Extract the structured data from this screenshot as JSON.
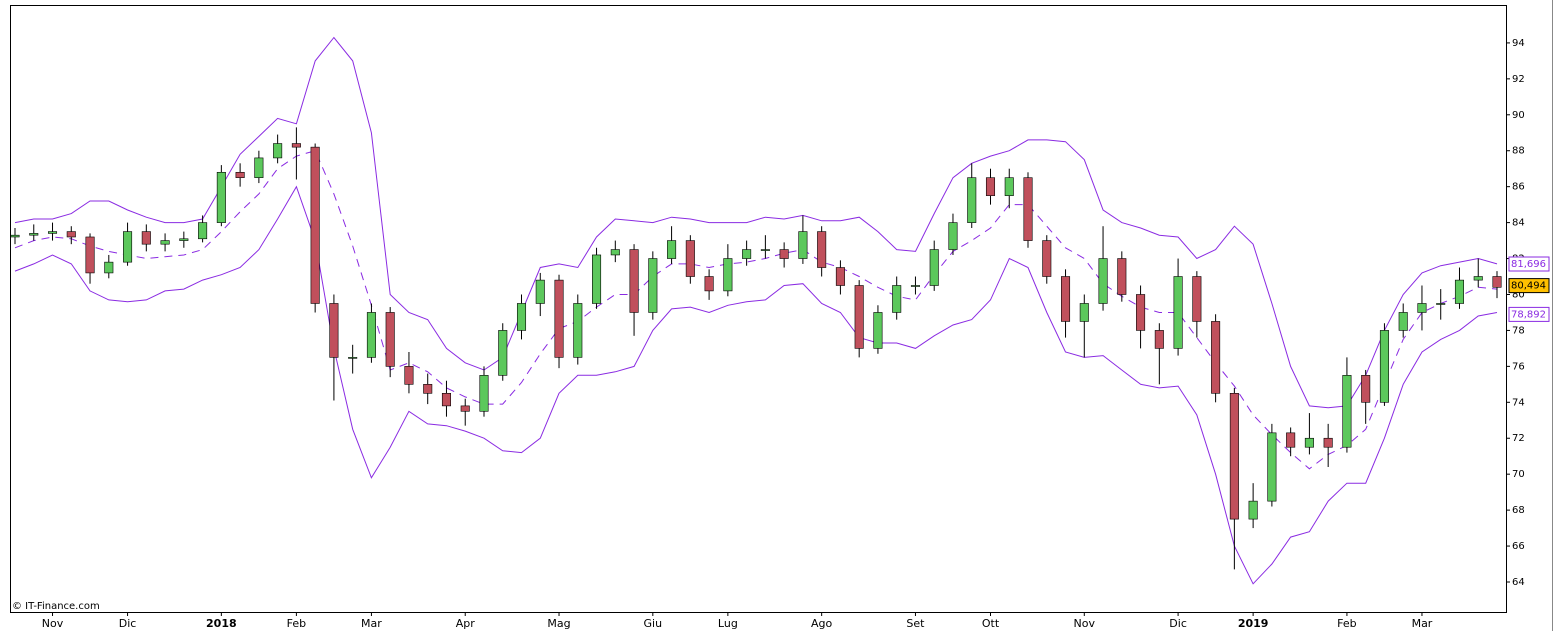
{
  "chart_data": {
    "type": "candlestick",
    "watermark": "© IT-Finance.com",
    "categories": [
      null,
      null,
      "Nov",
      null,
      null,
      null,
      "Dic",
      null,
      null,
      null,
      null,
      "2018",
      null,
      null,
      null,
      "Feb",
      null,
      null,
      null,
      "Mar",
      null,
      null,
      null,
      null,
      "Apr",
      null,
      null,
      null,
      null,
      "Mag",
      null,
      null,
      null,
      null,
      "Giu",
      null,
      null,
      null,
      "Lug",
      null,
      null,
      null,
      null,
      "Ago",
      null,
      null,
      null,
      null,
      "Set",
      null,
      null,
      null,
      "Ott",
      null,
      null,
      null,
      null,
      "Nov",
      null,
      null,
      null,
      null,
      "Dic",
      null,
      null,
      null,
      "2019",
      null,
      null,
      null,
      null,
      "Feb",
      null,
      null,
      null,
      "Mar",
      null,
      null,
      null,
      null
    ],
    "open": [
      83.2,
      83.3,
      83.4,
      83.5,
      83.2,
      81.2,
      81.8,
      83.5,
      82.8,
      83.0,
      83.1,
      84.0,
      86.8,
      86.5,
      87.6,
      88.4,
      88.2,
      79.5,
      76.5,
      76.5,
      79.0,
      76.0,
      75.0,
      74.5,
      73.8,
      73.5,
      75.5,
      78.0,
      79.5,
      80.8,
      76.5,
      79.5,
      82.2,
      82.5,
      79.0,
      82.0,
      83.0,
      81.0,
      80.2,
      82.0,
      82.5,
      82.5,
      82.0,
      83.5,
      81.5,
      80.5,
      77.0,
      79.0,
      80.5,
      80.5,
      82.5,
      84.0,
      86.5,
      85.5,
      86.5,
      83.0,
      81.0,
      78.5,
      79.5,
      82.0,
      80.0,
      78.0,
      77.0,
      81.0,
      78.5,
      74.5,
      67.5,
      68.5,
      72.3,
      71.5,
      72.0,
      71.5,
      75.5,
      74.0,
      78.0,
      79.0,
      79.5,
      79.5,
      80.8,
      81.0
    ],
    "high": [
      83.7,
      83.9,
      84.0,
      83.8,
      83.4,
      82.2,
      84.0,
      83.9,
      83.4,
      83.5,
      84.4,
      87.2,
      87.3,
      88.0,
      88.9,
      89.3,
      88.4,
      80.0,
      77.2,
      79.5,
      79.3,
      76.8,
      75.6,
      75.2,
      74.2,
      76.0,
      78.4,
      80.0,
      81.2,
      81.1,
      80.0,
      82.6,
      83.0,
      82.8,
      82.4,
      83.8,
      83.3,
      81.4,
      82.8,
      83.0,
      83.3,
      82.9,
      84.4,
      83.8,
      81.9,
      80.8,
      79.4,
      81.0,
      81.0,
      83.0,
      84.5,
      87.3,
      87.0,
      87.0,
      86.8,
      83.3,
      81.4,
      80.0,
      83.8,
      82.4,
      80.5,
      78.4,
      82.0,
      81.3,
      78.9,
      74.8,
      69.5,
      72.8,
      72.6,
      73.4,
      72.8,
      76.5,
      75.8,
      78.4,
      79.5,
      80.5,
      80.3,
      81.5,
      82.0,
      81.3
    ],
    "low": [
      82.8,
      83.0,
      83.0,
      82.8,
      80.6,
      80.9,
      81.6,
      82.4,
      82.4,
      82.6,
      82.9,
      83.8,
      86.0,
      86.2,
      87.3,
      86.4,
      79.0,
      74.1,
      75.6,
      76.2,
      75.4,
      74.5,
      73.9,
      73.2,
      72.7,
      73.2,
      75.2,
      77.5,
      78.8,
      75.9,
      76.1,
      79.2,
      81.8,
      77.7,
      78.6,
      81.7,
      80.6,
      79.7,
      79.9,
      81.6,
      82.0,
      81.5,
      81.7,
      81.0,
      80.0,
      76.5,
      76.7,
      78.6,
      80.0,
      80.2,
      82.2,
      83.7,
      85.0,
      84.8,
      82.6,
      80.6,
      77.6,
      76.5,
      79.1,
      79.6,
      77.0,
      75.0,
      76.6,
      77.6,
      74.0,
      64.7,
      67.0,
      68.2,
      71.0,
      71.1,
      70.4,
      71.2,
      72.8,
      73.8,
      77.6,
      78.0,
      78.6,
      79.2,
      80.4,
      79.8
    ],
    "close": [
      83.3,
      83.4,
      83.5,
      83.2,
      81.2,
      81.8,
      83.5,
      82.8,
      83.0,
      83.1,
      84.0,
      86.8,
      86.5,
      87.6,
      88.4,
      88.2,
      79.5,
      76.5,
      76.5,
      79.0,
      76.0,
      75.0,
      74.5,
      73.8,
      73.5,
      75.5,
      78.0,
      79.5,
      80.8,
      76.5,
      79.5,
      82.2,
      82.5,
      79.0,
      82.0,
      83.0,
      81.0,
      80.2,
      82.0,
      82.5,
      82.5,
      82.0,
      83.5,
      81.5,
      80.5,
      77.0,
      79.0,
      80.5,
      80.5,
      82.5,
      84.0,
      86.5,
      85.5,
      86.5,
      83.0,
      81.0,
      78.5,
      79.5,
      82.0,
      80.0,
      78.0,
      77.0,
      81.0,
      78.5,
      74.5,
      67.5,
      68.5,
      72.3,
      71.5,
      72.0,
      71.5,
      75.5,
      74.0,
      78.0,
      79.0,
      79.5,
      79.5,
      80.8,
      81.0,
      80.4
    ],
    "up_color": "#5cc85c",
    "down_color": "#c0505c",
    "bands": [
      {
        "color": "#8a2be2",
        "dashed": false,
        "values": [
          84.0,
          84.2,
          84.2,
          84.5,
          85.2,
          85.2,
          84.7,
          84.3,
          84.0,
          84.0,
          84.2,
          86.0,
          87.8,
          88.8,
          89.8,
          89.5,
          93.0,
          94.3,
          93.0,
          89.0,
          80.0,
          79.0,
          78.6,
          77.0,
          76.2,
          75.8,
          76.5,
          79.0,
          81.5,
          81.7,
          81.5,
          83.2,
          84.2,
          84.1,
          84.0,
          84.3,
          84.2,
          84.0,
          84.0,
          84.0,
          84.3,
          84.2,
          84.4,
          84.1,
          84.1,
          84.3,
          83.5,
          82.5,
          82.4,
          84.5,
          86.5,
          87.3,
          87.7,
          88.0,
          88.6,
          88.6,
          88.5,
          87.5,
          84.7,
          84.0,
          83.7,
          83.3,
          83.2,
          82.0,
          82.5,
          83.8,
          82.8,
          79.5,
          76.0,
          73.8,
          73.7,
          73.8,
          75.5,
          78.0,
          80.0,
          81.2,
          81.6,
          81.8,
          82.0,
          81.7
        ]
      },
      {
        "color": "#8a2be2",
        "dashed": true,
        "values": [
          82.6,
          83.0,
          83.2,
          83.1,
          82.7,
          82.4,
          82.2,
          82.0,
          82.1,
          82.2,
          82.5,
          83.5,
          84.6,
          85.6,
          87.0,
          87.7,
          88.0,
          85.6,
          82.7,
          79.4,
          75.8,
          76.2,
          75.7,
          74.8,
          74.3,
          73.9,
          73.9,
          75.1,
          76.7,
          78.1,
          78.5,
          79.3,
          80.0,
          80.0,
          81.0,
          81.7,
          81.7,
          81.5,
          81.7,
          81.8,
          82.0,
          82.3,
          82.5,
          81.8,
          81.5,
          81.0,
          80.4,
          79.9,
          79.7,
          81.1,
          82.4,
          83.0,
          83.7,
          85.0,
          85.0,
          83.8,
          82.6,
          82.0,
          80.6,
          79.9,
          79.3,
          79.0,
          79.0,
          77.6,
          76.2,
          74.9,
          73.3,
          72.2,
          71.2,
          70.3,
          71.1,
          71.6,
          72.5,
          75.0,
          77.5,
          79.0,
          79.5,
          79.9,
          80.4,
          80.3
        ]
      },
      {
        "color": "#8a2be2",
        "dashed": false,
        "values": [
          81.3,
          81.7,
          82.2,
          81.7,
          80.2,
          79.7,
          79.6,
          79.7,
          80.2,
          80.3,
          80.8,
          81.1,
          81.5,
          82.5,
          84.2,
          86.0,
          83.0,
          77.0,
          72.5,
          69.8,
          71.5,
          73.5,
          72.8,
          72.7,
          72.4,
          72.0,
          71.3,
          71.2,
          72.0,
          74.5,
          75.5,
          75.5,
          75.7,
          76.0,
          78.0,
          79.2,
          79.3,
          79.0,
          79.4,
          79.6,
          79.7,
          80.5,
          80.6,
          79.5,
          79.0,
          77.6,
          77.3,
          77.3,
          77.0,
          77.7,
          78.3,
          78.6,
          79.7,
          82.0,
          81.5,
          79.0,
          76.8,
          76.5,
          76.6,
          75.8,
          75.0,
          74.8,
          74.9,
          73.3,
          70.0,
          66.0,
          63.9,
          65.0,
          66.5,
          66.8,
          68.5,
          69.5,
          69.5,
          72.0,
          75.0,
          76.8,
          77.5,
          78.0,
          78.8,
          79.0
        ]
      }
    ],
    "last_labels": [
      {
        "value": 81.696,
        "label": "81,696",
        "color": "#8a2be2",
        "fill": "#ffffff"
      },
      {
        "value": 80.494,
        "label": "80,494",
        "color": "#000000",
        "fill": "#ffc000"
      },
      {
        "value": 78.892,
        "label": "78,892",
        "color": "#8a2be2",
        "fill": "#ffffff"
      }
    ],
    "ylim": [
      62.33,
      96.11
    ],
    "yticks": [
      64,
      66,
      68,
      70,
      72,
      74,
      76,
      78,
      80,
      82,
      84,
      86,
      88,
      90,
      92,
      94
    ]
  }
}
